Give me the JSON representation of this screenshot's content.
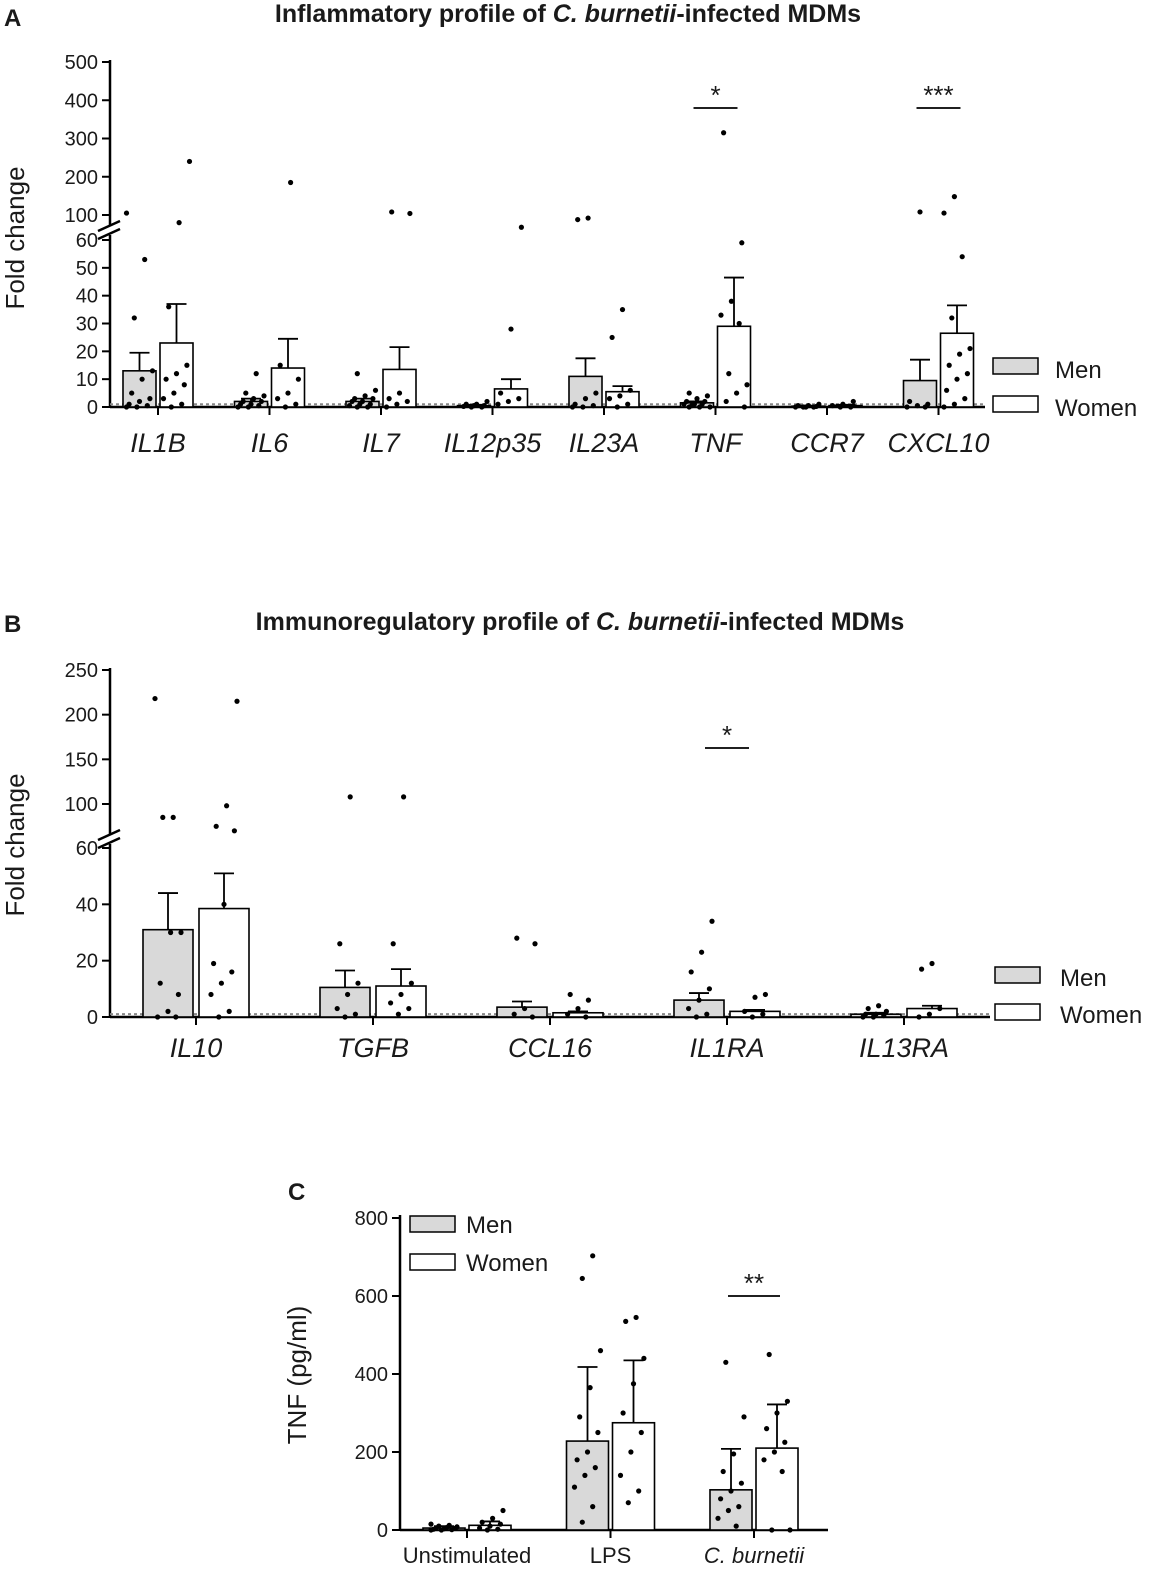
{
  "colors": {
    "men": "#d9d9d9",
    "women": "#ffffff",
    "stroke": "#000000"
  },
  "panels": [
    {
      "letter": "A",
      "title_parts": [
        {
          "text": "Inflammatory profile of ",
          "italic": false
        },
        {
          "text": "C. burnetii",
          "italic": true
        },
        {
          "text": "-infected MDMs",
          "italic": false
        }
      ],
      "ylabel": "Fold change",
      "legend": [
        "Men",
        "Women"
      ]
    },
    {
      "letter": "B",
      "title_parts": [
        {
          "text": "Immunoregulatory profile of ",
          "italic": false
        },
        {
          "text": "C. burnetii",
          "italic": true
        },
        {
          "text": "-infected MDMs",
          "italic": false
        }
      ],
      "ylabel": "Fold change",
      "legend": [
        "Men",
        "Women"
      ]
    },
    {
      "letter": "C",
      "ylabel": "TNF (pg/ml)",
      "legend": [
        "Men",
        "Women"
      ]
    }
  ],
  "chart_data": [
    {
      "type": "bar",
      "title": "Inflammatory profile of C. burnetii-infected MDMs",
      "ylabel": "Fold change",
      "y_axis_broken": true,
      "yticks_lower": [
        0,
        10,
        20,
        30,
        40,
        50,
        60
      ],
      "yticks_upper": [
        100,
        200,
        300,
        400,
        500
      ],
      "categories": [
        "IL1B",
        "IL6",
        "IL7",
        "IL12p35",
        "IL23A",
        "TNF",
        "CCR7",
        "CXCL10"
      ],
      "series": [
        {
          "name": "Men",
          "values": [
            13,
            2,
            2,
            0.5,
            11,
            1.5,
            0.3,
            9.5
          ],
          "sem": [
            6.5,
            1,
            1,
            0.3,
            6.5,
            0.5,
            0.2,
            7.5
          ],
          "points": [
            [
              105,
              53,
              32,
              13,
              10,
              5,
              3,
              2,
              1,
              0.5,
              0,
              0
            ],
            [
              12,
              5,
              4,
              3,
              2,
              2,
              1,
              1,
              0.5,
              0,
              0
            ],
            [
              12,
              6,
              4,
              3,
              3,
              2,
              2,
              1,
              1,
              0.5,
              0,
              0
            ],
            [
              2,
              1,
              1,
              0.5,
              0.5,
              0.2,
              0,
              0
            ],
            [
              92,
              88,
              5,
              3,
              1,
              0.5,
              0,
              0
            ],
            [
              5,
              4,
              3,
              2,
              2,
              1,
              1,
              1,
              0.5,
              0,
              0,
              0
            ],
            [
              1,
              0.5,
              0.5,
              0.2,
              0,
              0,
              0,
              0
            ],
            [
              108,
              2,
              1,
              0.5,
              0,
              0
            ]
          ]
        },
        {
          "name": "Women",
          "values": [
            23,
            14,
            13.5,
            6.5,
            5.5,
            29,
            0.5,
            26.5
          ],
          "sem": [
            14,
            10.5,
            8,
            3.5,
            2,
            17.5,
            0.3,
            10
          ],
          "points": [
            [
              240,
              80,
              36,
              15,
              12,
              10,
              8,
              5,
              3,
              1,
              0
            ],
            [
              185,
              15,
              10,
              5,
              3,
              1,
              0
            ],
            [
              108,
              104,
              5,
              3,
              2,
              1,
              0
            ],
            [
              68,
              28,
              5,
              3,
              2,
              1
            ],
            [
              35,
              25,
              6,
              4,
              3,
              1,
              0
            ],
            [
              315,
              59,
              38,
              33,
              30,
              12,
              8,
              5,
              2,
              0
            ],
            [
              2,
              1,
              0.5,
              0,
              0
            ],
            [
              148,
              105,
              54,
              32,
              21,
              19,
              15,
              12,
              10,
              6,
              3,
              1,
              0
            ]
          ]
        }
      ],
      "significance": [
        {
          "category": "TNF",
          "label": "*"
        },
        {
          "category": "CXCL10",
          "label": "***"
        }
      ],
      "legend_position": "right"
    },
    {
      "type": "bar",
      "title": "Immunoregulatory profile of C. burnetii-infected MDMs",
      "ylabel": "Fold change",
      "y_axis_broken": true,
      "yticks_lower": [
        0,
        20,
        40,
        60
      ],
      "yticks_upper": [
        100,
        150,
        200,
        250
      ],
      "categories": [
        "IL10",
        "TGFB",
        "CCL16",
        "IL1RA",
        "IL13RA"
      ],
      "series": [
        {
          "name": "Men",
          "values": [
            31,
            10.5,
            3.5,
            6,
            1
          ],
          "sem": [
            13,
            6,
            2,
            2.5,
            0.5
          ],
          "points": [
            [
              218,
              85,
              85,
              30,
              30,
              12,
              8,
              2,
              0,
              0
            ],
            [
              108,
              26,
              12,
              8,
              3,
              1,
              0
            ],
            [
              28,
              26,
              3,
              1,
              0
            ],
            [
              34,
              23,
              16,
              10,
              6,
              3,
              1,
              0
            ],
            [
              4,
              3,
              2,
              1,
              1,
              0.5,
              0,
              0
            ]
          ]
        },
        {
          "name": "Women",
          "values": [
            38.5,
            11,
            1.5,
            2,
            3
          ],
          "sem": [
            12.5,
            6,
            0.5,
            0.5,
            1
          ],
          "points": [
            [
              215,
              98,
              75,
              70,
              40,
              19,
              16,
              12,
              8,
              2,
              0
            ],
            [
              108,
              26,
              12,
              8,
              5,
              3,
              1
            ],
            [
              8,
              6,
              3,
              1,
              0
            ],
            [
              8,
              7,
              2,
              1,
              0
            ],
            [
              19,
              17,
              3,
              1,
              0
            ]
          ]
        }
      ],
      "significance": [
        {
          "category": "IL1RA",
          "label": "*"
        }
      ],
      "legend_position": "right"
    },
    {
      "type": "bar",
      "ylabel": "TNF (pg/ml)",
      "ylim": [
        0,
        800
      ],
      "yticks": [
        0,
        200,
        400,
        600,
        800
      ],
      "categories": [
        "Unstimulated",
        "LPS",
        "C. burnetii"
      ],
      "series": [
        {
          "name": "Men",
          "values": [
            5,
            228,
            103
          ],
          "sd": [
            5,
            190,
            105
          ],
          "points": [
            [
              15,
              12,
              10,
              8,
              6,
              5,
              4,
              3,
              2,
              1,
              0,
              0
            ],
            [
              703,
              645,
              460,
              365,
              290,
              250,
              200,
              180,
              160,
              140,
              110,
              60,
              20
            ],
            [
              430,
              290,
              195,
              150,
              120,
              100,
              80,
              60,
              50,
              30,
              10
            ]
          ]
        },
        {
          "name": "Women",
          "values": [
            12,
            275,
            210
          ],
          "sd": [
            10,
            160,
            112
          ],
          "points": [
            [
              50,
              30,
              20,
              15,
              10,
              5,
              2,
              0
            ],
            [
              545,
              535,
              440,
              375,
              300,
              250,
              200,
              140,
              100,
              70
            ],
            [
              450,
              330,
              300,
              260,
              225,
              200,
              180,
              150,
              0,
              0
            ]
          ]
        }
      ],
      "significance": [
        {
          "category": "C. burnetii",
          "label": "**"
        }
      ],
      "legend_position": "top-left"
    }
  ]
}
